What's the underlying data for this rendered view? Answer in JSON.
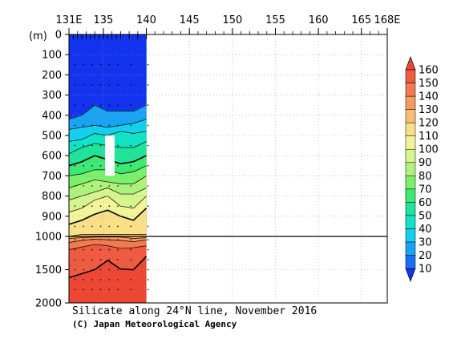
{
  "chart_data": {
    "type": "heatmap",
    "title": "Silicate along 24°N line, November 2016",
    "credit": "(C) Japan Meteorological Agency",
    "ylabel": "(m)",
    "x_ticks": [
      {
        "value": 131,
        "label": "131E"
      },
      {
        "value": 135,
        "label": "135"
      },
      {
        "value": 140,
        "label": "140"
      },
      {
        "value": 145,
        "label": "145"
      },
      {
        "value": 150,
        "label": "150"
      },
      {
        "value": 155,
        "label": "155"
      },
      {
        "value": 160,
        "label": "160"
      },
      {
        "value": 165,
        "label": "165"
      },
      {
        "value": 168,
        "label": "168E"
      }
    ],
    "xlim": [
      131,
      168
    ],
    "y_upper_ticks": [
      "0",
      "100",
      "200",
      "300",
      "400",
      "500",
      "600",
      "700",
      "800",
      "900",
      "1000"
    ],
    "y_lower_ticks": [
      "1500",
      "2000"
    ],
    "ylim": [
      0,
      2000
    ],
    "y_break_depth": 1000,
    "grid": "dotted",
    "station_longitudes": [
      131.5,
      132,
      132.5,
      133,
      133.5,
      134,
      134.5,
      135,
      135.5,
      136,
      136.5,
      137,
      138,
      139,
      140
    ],
    "data_range_lon": [
      131,
      140
    ],
    "colorbar": {
      "levels": [
        "10",
        "20",
        "30",
        "40",
        "50",
        "60",
        "70",
        "80",
        "90",
        "100",
        "110",
        "120",
        "130",
        "140",
        "150",
        "160"
      ],
      "colors": [
        "#1433ee",
        "#1a70f4",
        "#1aa3f2",
        "#12d0ee",
        "#11e4c6",
        "#20e49a",
        "#3de873",
        "#7bf06c",
        "#aef27c",
        "#d5f58e",
        "#f2f49a",
        "#f9df86",
        "#f8be74",
        "#f59a60",
        "#f37a50",
        "#ef5b40",
        "#ec4735"
      ],
      "placement": "right"
    },
    "missing_area": {
      "lon": [
        135.2,
        136.3
      ],
      "depth": [
        500,
        700
      ]
    },
    "bands": [
      {
        "level": 10,
        "color": "#1a70f4",
        "depths": [
          420,
          400,
          350,
          380,
          380,
          380,
          350
        ]
      },
      {
        "level": 20,
        "color": "#1aa3f2",
        "depths": [
          470,
          460,
          450,
          460,
          450,
          440,
          420
        ]
      },
      {
        "level": 30,
        "color": "#12d0ee",
        "depths": [
          530,
          520,
          490,
          500,
          480,
          490,
          480
        ]
      },
      {
        "level": 40,
        "color": "#11e4c6",
        "depths": [
          590,
          560,
          540,
          550,
          560,
          560,
          530
        ]
      },
      {
        "level": 50,
        "color": "#20e49a",
        "depths": [
          650,
          630,
          600,
          620,
          640,
          630,
          600
        ]
      },
      {
        "level": 60,
        "color": "#3de873",
        "depths": [
          700,
          690,
          670,
          670,
          690,
          680,
          650
        ]
      },
      {
        "level": 70,
        "color": "#7bf06c",
        "depths": [
          760,
          740,
          720,
          730,
          740,
          740,
          700
        ]
      },
      {
        "level": 80,
        "color": "#aef27c",
        "depths": [
          820,
          800,
          780,
          760,
          790,
          790,
          760
        ]
      },
      {
        "level": 90,
        "color": "#d5f58e",
        "depths": [
          880,
          860,
          820,
          800,
          850,
          860,
          800
        ]
      },
      {
        "level": 100,
        "color": "#f2f49a",
        "depths": [
          940,
          920,
          890,
          870,
          900,
          920,
          860
        ]
      },
      {
        "level": 110,
        "color": "#f9df86",
        "depths": [
          1000,
          990,
          990,
          990,
          990,
          990,
          990
        ]
      },
      {
        "level": 120,
        "color": "#f8be74",
        "depths": [
          1030,
          1020,
          1010,
          1010,
          1010,
          1030,
          1020
        ]
      },
      {
        "level": 130,
        "color": "#f59a60",
        "depths": [
          1090,
          1060,
          1040,
          1050,
          1060,
          1080,
          1050
        ]
      },
      {
        "level": 140,
        "color": "#f37a50",
        "depths": [
          1200,
          1160,
          1120,
          1140,
          1180,
          1170,
          1140
        ]
      },
      {
        "level": 150,
        "color": "#ef5b40",
        "depths": [
          1620,
          1560,
          1500,
          1360,
          1490,
          1500,
          1300
        ]
      }
    ],
    "band_lon": [
      131,
      132.5,
      134,
      135.5,
      137,
      138.5,
      140
    ]
  }
}
